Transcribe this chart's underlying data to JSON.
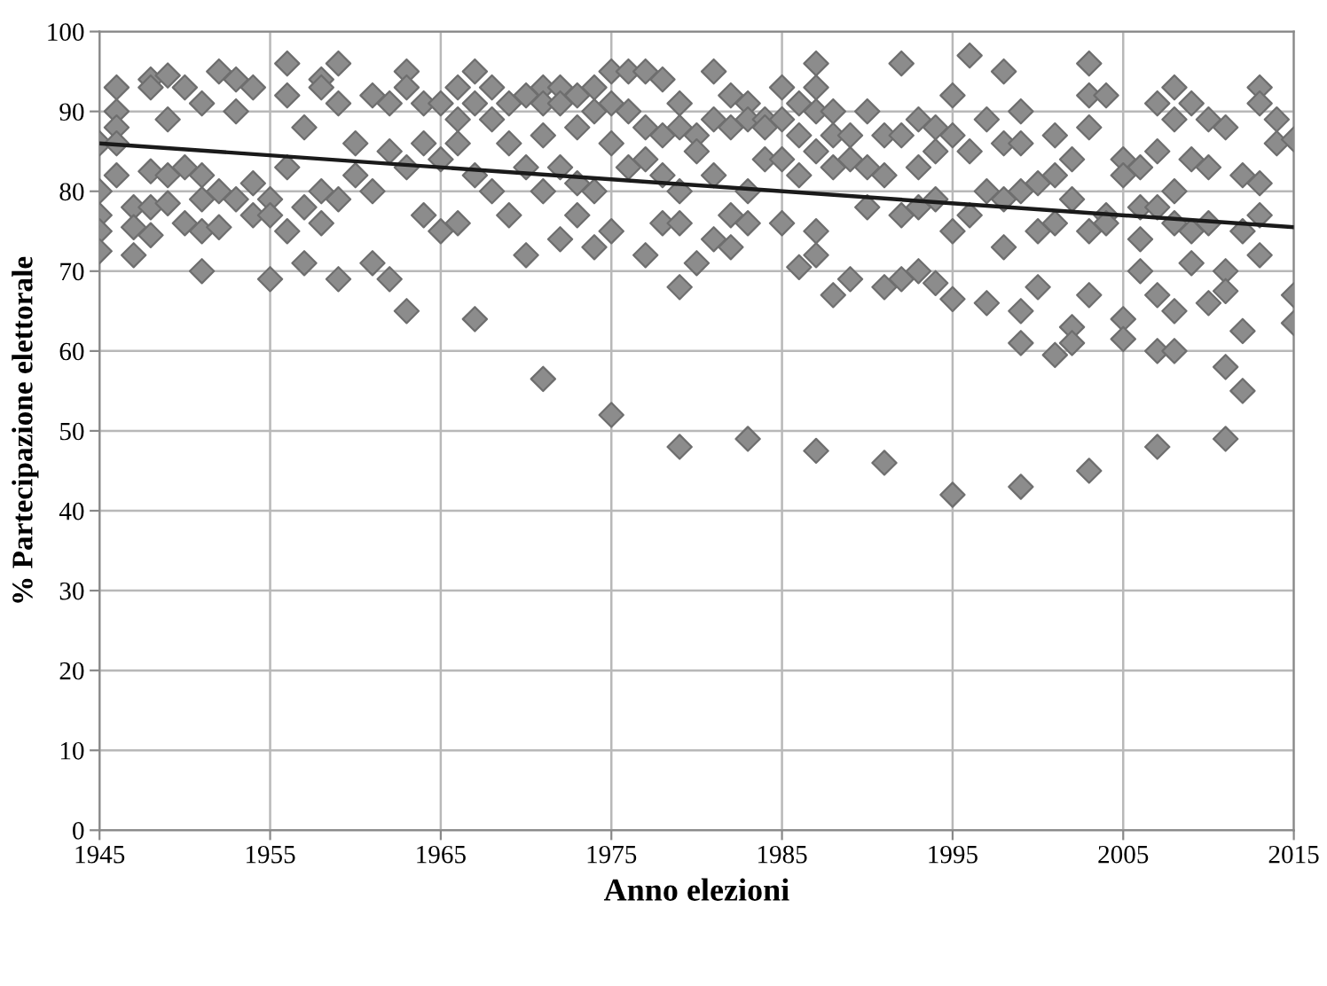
{
  "chart_data": {
    "type": "scatter",
    "xlabel": "Anno elezioni",
    "ylabel": "% Partecipazione elettorale",
    "xlim": [
      1945,
      2015
    ],
    "xticks": [
      1945,
      1955,
      1965,
      1975,
      1985,
      1995,
      2005,
      2015
    ],
    "ylim": [
      0,
      100
    ],
    "yticks": [
      0,
      10,
      20,
      30,
      40,
      50,
      60,
      70,
      80,
      90,
      100
    ],
    "grid": true,
    "marker": "diamond",
    "legend": false,
    "series": [
      {
        "color": "#8c8c8c",
        "x": [
          1945,
          1945,
          1945,
          1945,
          1945,
          1946,
          1946,
          1946,
          1946,
          1946,
          1947,
          1947,
          1947,
          1948,
          1948,
          1948,
          1948,
          1948,
          1949,
          1949,
          1949,
          1949,
          1950,
          1950,
          1950,
          1951,
          1951,
          1951,
          1951,
          1951,
          1952,
          1952,
          1952,
          1953,
          1953,
          1953,
          1954,
          1954,
          1954,
          1955,
          1955,
          1955,
          1956,
          1956,
          1956,
          1956,
          1957,
          1957,
          1957,
          1958,
          1958,
          1958,
          1958,
          1959,
          1959,
          1959,
          1959,
          1960,
          1960,
          1961,
          1961,
          1961,
          1962,
          1962,
          1962,
          1963,
          1963,
          1963,
          1963,
          1964,
          1964,
          1964,
          1965,
          1965,
          1965,
          1966,
          1966,
          1966,
          1966,
          1967,
          1967,
          1967,
          1967,
          1968,
          1968,
          1968,
          1969,
          1969,
          1969,
          1970,
          1970,
          1970,
          1971,
          1971,
          1971,
          1971,
          1971,
          1972,
          1972,
          1972,
          1972,
          1973,
          1973,
          1973,
          1973,
          1974,
          1974,
          1974,
          1974,
          1975,
          1975,
          1975,
          1975,
          1975,
          1976,
          1976,
          1976,
          1977,
          1977,
          1977,
          1977,
          1978,
          1978,
          1978,
          1978,
          1979,
          1979,
          1979,
          1979,
          1979,
          1979,
          1980,
          1980,
          1980,
          1981,
          1981,
          1981,
          1981,
          1982,
          1982,
          1982,
          1982,
          1983,
          1983,
          1983,
          1983,
          1983,
          1984,
          1984,
          1984,
          1985,
          1985,
          1985,
          1985,
          1986,
          1986,
          1986,
          1986,
          1987,
          1987,
          1987,
          1987,
          1987,
          1987,
          1987,
          1988,
          1988,
          1988,
          1988,
          1989,
          1989,
          1989,
          1990,
          1990,
          1990,
          1991,
          1991,
          1991,
          1991,
          1992,
          1992,
          1992,
          1992,
          1993,
          1993,
          1993,
          1993,
          1994,
          1994,
          1994,
          1994,
          1995,
          1995,
          1995,
          1995,
          1995,
          1996,
          1996,
          1996,
          1997,
          1997,
          1997,
          1998,
          1998,
          1998,
          1998,
          1999,
          1999,
          1999,
          1999,
          1999,
          1999,
          2000,
          2000,
          2000,
          2001,
          2001,
          2001,
          2001,
          2002,
          2002,
          2002,
          2002,
          2003,
          2003,
          2003,
          2003,
          2003,
          2003,
          2004,
          2004,
          2004,
          2005,
          2005,
          2005,
          2005,
          2006,
          2006,
          2006,
          2006,
          2007,
          2007,
          2007,
          2007,
          2007,
          2007,
          2008,
          2008,
          2008,
          2008,
          2008,
          2008,
          2009,
          2009,
          2009,
          2009,
          2010,
          2010,
          2010,
          2010,
          2011,
          2011,
          2011,
          2011,
          2011,
          2012,
          2012,
          2012,
          2012,
          2013,
          2013,
          2013,
          2013,
          2013,
          2014,
          2014,
          2015,
          2015,
          2015
        ],
        "values": [
          86,
          80,
          77,
          75,
          72.5,
          93,
          90,
          88,
          86,
          82,
          78,
          75.5,
          72,
          94,
          93,
          82.5,
          78,
          74.5,
          94.5,
          89,
          82,
          78.5,
          93,
          83,
          76,
          91,
          82,
          79,
          75,
          70,
          95,
          80,
          75.5,
          94,
          90,
          79,
          93,
          81,
          77,
          79,
          77,
          69,
          96,
          92,
          83,
          75,
          88,
          78,
          71,
          94,
          93,
          80,
          76,
          96,
          91,
          79,
          69,
          86,
          82,
          92,
          80,
          71,
          91,
          85,
          69,
          95,
          93,
          83,
          65,
          91,
          86,
          77,
          91,
          84,
          75,
          93,
          89,
          86,
          76,
          95,
          91,
          82,
          64,
          93,
          89,
          80,
          91,
          86,
          77,
          92,
          83,
          72,
          93,
          91,
          87,
          80,
          56.5,
          93,
          91,
          83,
          74,
          92,
          88,
          81,
          77,
          93,
          90,
          80,
          73,
          95,
          91,
          86,
          75,
          52,
          95,
          90,
          83,
          95,
          88,
          84,
          72,
          94,
          87,
          82,
          76,
          91,
          88,
          80,
          76,
          68,
          48,
          87,
          85,
          71,
          95,
          89,
          82,
          74,
          92,
          88,
          77,
          73,
          91,
          89,
          80,
          76,
          49,
          89,
          88,
          84,
          93,
          89,
          84,
          76,
          91,
          87,
          82,
          70.5,
          96,
          93,
          90,
          85,
          75,
          72,
          47.5,
          90,
          87,
          83,
          67,
          87,
          84,
          69,
          90,
          83,
          78,
          87,
          82,
          68,
          46,
          96,
          87,
          77,
          69,
          89,
          83,
          78,
          70,
          88,
          85,
          79,
          68.5,
          92,
          87,
          75,
          66.5,
          42,
          97,
          85,
          77,
          89,
          80,
          66,
          95,
          86,
          79,
          73,
          90,
          86,
          80,
          65,
          61,
          43,
          81,
          75,
          68,
          87,
          82,
          76,
          59.5,
          84,
          79,
          63,
          61,
          96,
          92,
          88,
          75,
          67,
          45,
          92,
          77,
          76,
          84,
          82,
          64,
          61.5,
          83,
          78,
          74,
          70,
          91,
          85,
          78,
          67,
          60,
          48,
          93,
          89,
          80,
          76,
          65,
          60,
          91,
          84,
          75,
          71,
          89,
          83,
          76,
          66,
          88,
          70,
          67.5,
          58,
          49,
          82,
          75,
          62.5,
          55,
          93,
          91,
          81,
          77,
          72,
          89,
          86,
          86.5,
          67,
          63.5
        ]
      },
      {
        "type": "line",
        "color": "#1a1a1a",
        "marker": "none",
        "line_style": "solid",
        "x": [
          1945,
          2015
        ],
        "values": [
          86,
          75.5
        ]
      }
    ]
  }
}
